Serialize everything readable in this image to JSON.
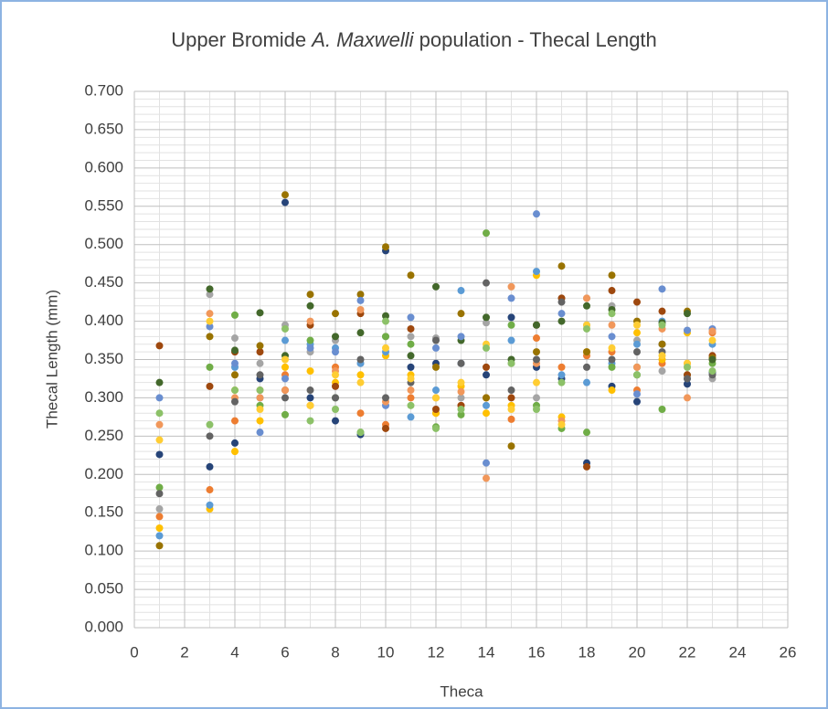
{
  "chart_data": {
    "type": "scatter",
    "title": {
      "before": "Upper Bromide",
      "italic": "A. Maxwelli",
      "after": "population - Thecal Length"
    },
    "x_label": "Theca",
    "y_label": "Thecal Length  (mm)",
    "xlim": [
      0,
      26
    ],
    "xticks": [
      0,
      2,
      4,
      6,
      8,
      10,
      12,
      14,
      16,
      18,
      20,
      22,
      24,
      26
    ],
    "ylim": [
      0,
      0.7
    ],
    "yticks": [
      {
        "value": 0,
        "label": "0.000"
      },
      {
        "value": 0.05,
        "label": "0.050"
      },
      {
        "value": 0.1,
        "label": "0.100"
      },
      {
        "value": 0.15,
        "label": "0.150"
      },
      {
        "value": 0.2,
        "label": "0.200"
      },
      {
        "value": 0.25,
        "label": "0.250"
      },
      {
        "value": 0.3,
        "label": "0.300"
      },
      {
        "value": 0.35,
        "label": "0.350"
      },
      {
        "value": 0.4,
        "label": "0.400"
      },
      {
        "value": 0.45,
        "label": "0.450"
      },
      {
        "value": 0.5,
        "label": "0.500"
      },
      {
        "value": 0.55,
        "label": "0.550"
      },
      {
        "value": 0.6,
        "label": "0.600"
      },
      {
        "value": 0.65,
        "label": "0.650"
      },
      {
        "value": 0.7,
        "label": "0.700"
      }
    ],
    "grid": true,
    "minor_grid": true,
    "x": [
      1,
      3,
      4,
      5,
      6,
      7,
      8,
      9,
      10,
      11,
      12,
      13,
      14,
      15,
      16,
      17,
      18,
      19,
      20,
      21,
      22,
      23
    ],
    "series": [
      {
        "color": "#264478",
        "values": [
          0.226,
          0.21,
          0.241,
          0.325,
          0.555,
          0.3,
          0.27,
          0.252,
          0.492,
          0.34,
          0.345,
          0.345,
          0.33,
          0.405,
          0.34,
          0.325,
          0.215,
          0.315,
          0.295,
          0.37,
          0.318,
          0.333
        ]
      },
      {
        "color": "#ed7d31",
        "values": [
          0.145,
          0.18,
          0.27,
          0.31,
          0.33,
          0.29,
          0.34,
          0.28,
          0.265,
          0.3,
          0.28,
          0.29,
          0.3,
          0.272,
          0.378,
          0.34,
          0.355,
          0.36,
          0.31,
          0.345,
          0.345,
          0.385
        ]
      },
      {
        "color": "#a5a5a5",
        "values": [
          0.155,
          0.435,
          0.378,
          0.345,
          0.395,
          0.36,
          0.375,
          0.345,
          0.38,
          0.38,
          0.378,
          0.3,
          0.398,
          0.345,
          0.3,
          0.43,
          0.43,
          0.42,
          0.375,
          0.335,
          0.388,
          0.325
        ]
      },
      {
        "color": "#ffc000",
        "values": [
          0.13,
          0.155,
          0.23,
          0.27,
          0.34,
          0.335,
          0.32,
          0.33,
          0.355,
          0.33,
          0.28,
          0.315,
          0.28,
          0.29,
          0.46,
          0.275,
          0.36,
          0.31,
          0.385,
          0.35,
          0.385,
          0.35
        ]
      },
      {
        "color": "#5b9bd5",
        "values": [
          0.12,
          0.16,
          0.34,
          0.3,
          0.375,
          0.37,
          0.365,
          0.345,
          0.36,
          0.275,
          0.31,
          0.44,
          0.29,
          0.375,
          0.465,
          0.33,
          0.32,
          0.345,
          0.37,
          0.4,
          0.325,
          0.37
        ]
      },
      {
        "color": "#70ad47",
        "values": [
          0.183,
          0.34,
          0.408,
          0.29,
          0.278,
          0.375,
          0.3,
          0.255,
          0.38,
          0.37,
          0.262,
          0.278,
          0.515,
          0.395,
          0.29,
          0.26,
          0.255,
          0.34,
          0.34,
          0.285,
          0.33,
          0.345
        ]
      },
      {
        "color": "#9e480e",
        "values": [
          0.368,
          0.315,
          0.36,
          0.36,
          0.31,
          0.395,
          0.315,
          0.41,
          0.26,
          0.39,
          0.285,
          0.29,
          0.34,
          0.3,
          0.395,
          0.43,
          0.21,
          0.44,
          0.425,
          0.413,
          0.33,
          0.355
        ]
      },
      {
        "color": "#997300",
        "values": [
          0.107,
          0.38,
          0.33,
          0.368,
          0.565,
          0.435,
          0.41,
          0.435,
          0.497,
          0.46,
          0.34,
          0.41,
          0.3,
          0.237,
          0.36,
          0.472,
          0.36,
          0.46,
          0.4,
          0.37,
          0.413,
          0.352
        ]
      },
      {
        "color": "#43682b",
        "values": [
          0.32,
          0.442,
          0.362,
          0.411,
          0.355,
          0.42,
          0.38,
          0.385,
          0.407,
          0.355,
          0.445,
          0.375,
          0.405,
          0.35,
          0.395,
          0.4,
          0.42,
          0.415,
          0.33,
          0.398,
          0.41,
          0.35
        ]
      },
      {
        "color": "#698ed0",
        "values": [
          0.3,
          0.393,
          0.345,
          0.255,
          0.325,
          0.365,
          0.36,
          0.427,
          0.29,
          0.405,
          0.365,
          0.38,
          0.215,
          0.43,
          0.54,
          0.41,
          0.395,
          0.38,
          0.305,
          0.442,
          0.388,
          0.39
        ]
      },
      {
        "color": "#f1975a",
        "values": [
          0.265,
          0.41,
          0.3,
          0.3,
          0.31,
          0.4,
          0.335,
          0.415,
          0.295,
          0.31,
          0.3,
          0.308,
          0.195,
          0.445,
          0.345,
          0.27,
          0.43,
          0.395,
          0.34,
          0.39,
          0.3,
          0.387
        ]
      },
      {
        "color": "#636363",
        "values": [
          0.175,
          0.25,
          0.295,
          0.33,
          0.3,
          0.31,
          0.3,
          0.35,
          0.3,
          0.32,
          0.375,
          0.345,
          0.45,
          0.31,
          0.35,
          0.425,
          0.34,
          0.35,
          0.36,
          0.36,
          0.325,
          0.33
        ]
      },
      {
        "color": "#ffcd33",
        "values": [
          0.245,
          0.4,
          0.31,
          0.285,
          0.35,
          0.29,
          0.33,
          0.32,
          0.365,
          0.325,
          0.3,
          0.32,
          0.37,
          0.285,
          0.32,
          0.265,
          0.395,
          0.365,
          0.395,
          0.355,
          0.345,
          0.375
        ]
      },
      {
        "color": "#8cc168",
        "values": [
          0.28,
          0.265,
          0.31,
          0.31,
          0.39,
          0.27,
          0.285,
          0.255,
          0.4,
          0.29,
          0.26,
          0.285,
          0.365,
          0.345,
          0.285,
          0.32,
          0.39,
          0.41,
          0.33,
          0.395,
          0.34,
          0.335
        ]
      }
    ]
  }
}
